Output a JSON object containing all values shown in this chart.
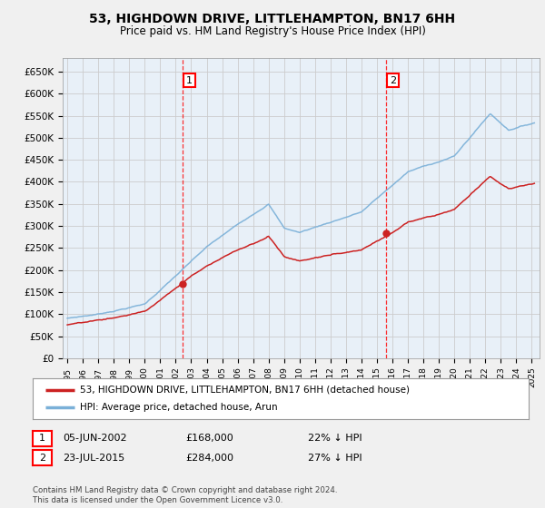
{
  "title": "53, HIGHDOWN DRIVE, LITTLEHAMPTON, BN17 6HH",
  "subtitle": "Price paid vs. HM Land Registry's House Price Index (HPI)",
  "ylabel_ticks": [
    "£0",
    "£50K",
    "£100K",
    "£150K",
    "£200K",
    "£250K",
    "£300K",
    "£350K",
    "£400K",
    "£450K",
    "£500K",
    "£550K",
    "£600K",
    "£650K"
  ],
  "ytick_values": [
    0,
    50000,
    100000,
    150000,
    200000,
    250000,
    300000,
    350000,
    400000,
    450000,
    500000,
    550000,
    600000,
    650000
  ],
  "ylim": [
    0,
    680000
  ],
  "xlim_start": 1994.7,
  "xlim_end": 2025.5,
  "hpi_color": "#7ab0d8",
  "price_color": "#cc2222",
  "background_color": "#f0f0f0",
  "plot_bg_color": "#e8f0f8",
  "grid_color": "#cccccc",
  "sale1_x": 2002.43,
  "sale1_y": 168000,
  "sale2_x": 2015.56,
  "sale2_y": 284000,
  "legend_label_price": "53, HIGHDOWN DRIVE, LITTLEHAMPTON, BN17 6HH (detached house)",
  "legend_label_hpi": "HPI: Average price, detached house, Arun",
  "footnote1_date": "05-JUN-2002",
  "footnote1_price": "£168,000",
  "footnote1_hpi": "22% ↓ HPI",
  "footnote2_date": "23-JUL-2015",
  "footnote2_price": "£284,000",
  "footnote2_hpi": "27% ↓ HPI",
  "copyright_text": "Contains HM Land Registry data © Crown copyright and database right 2024.\nThis data is licensed under the Open Government Licence v3.0."
}
